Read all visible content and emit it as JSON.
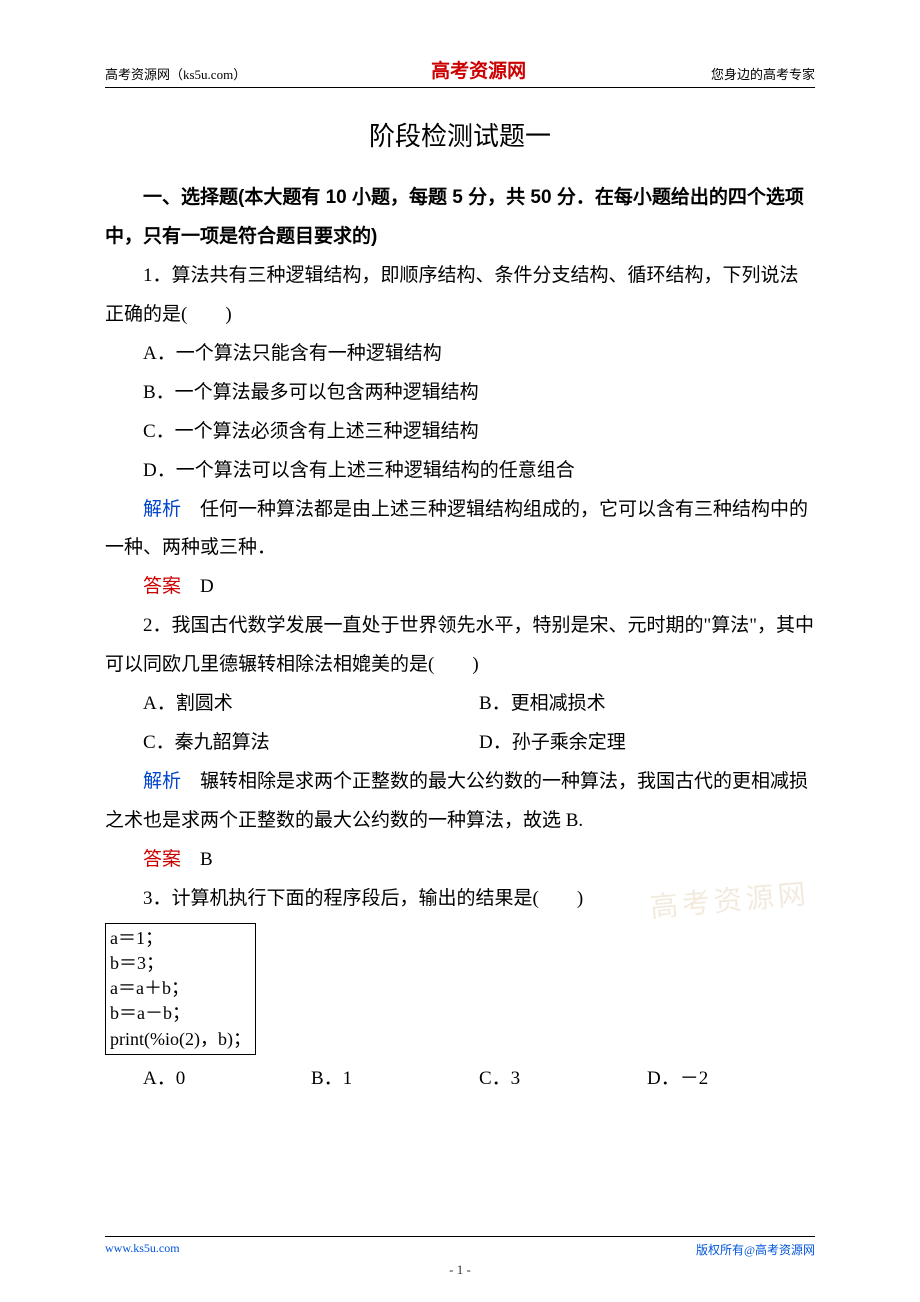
{
  "header": {
    "left": "高考资源网（ks5u.com）",
    "center": "高考资源网",
    "right": "您身边的高考专家"
  },
  "title": "阶段检测试题一",
  "section_header": "一、选择题(本大题有 10 小题，每题 5 分，共 50 分．在每小题给出的四个选项中，只有一项是符合题目要求的)",
  "q1": {
    "text": "1．算法共有三种逻辑结构，即顺序结构、条件分支结构、循环结构，下列说法正确的是(　　)",
    "optA": "A．一个算法只能含有一种逻辑结构",
    "optB": "B．一个算法最多可以包含两种逻辑结构",
    "optC": "C．一个算法必须含有上述三种逻辑结构",
    "optD": "D．一个算法可以含有上述三种逻辑结构的任意组合",
    "exp_label": "解析",
    "exp_text": "　任何一种算法都是由上述三种逻辑结构组成的，它可以含有三种结构中的一种、两种或三种．",
    "ans_label": "答案",
    "ans_value": "　D"
  },
  "q2": {
    "text": "2．我国古代数学发展一直处于世界领先水平，特别是宋、元时期的\"算法\"，其中可以同欧几里德辗转相除法相媲美的是(　　)",
    "optA": "A．割圆术",
    "optB": "B．更相减损术",
    "optC": "C．秦九韶算法",
    "optD": "D．孙子乘余定理",
    "exp_label": "解析",
    "exp_text": "　辗转相除是求两个正整数的最大公约数的一种算法，我国古代的更相减损之术也是求两个正整数的最大公约数的一种算法，故选 B.",
    "ans_label": "答案",
    "ans_value": "　B"
  },
  "q3": {
    "text": "3．计算机执行下面的程序段后，输出的结果是(　　)",
    "code_lines": [
      "a＝1；",
      "b＝3；",
      "a＝a＋b；",
      "b＝a－b；",
      "print(%io(2)，b)；"
    ],
    "optA": "A．0",
    "optB": "B．1",
    "optC": "C．3",
    "optD": "D．－2"
  },
  "footer": {
    "left": "www.ks5u.com",
    "right": "版权所有@高考资源网",
    "page_num": "- 1 -"
  },
  "watermark": "高考资源网",
  "colors": {
    "red": "#cc0000",
    "blue": "#0044cc",
    "link_blue": "#0055dd",
    "text": "#000000",
    "background": "#ffffff"
  }
}
